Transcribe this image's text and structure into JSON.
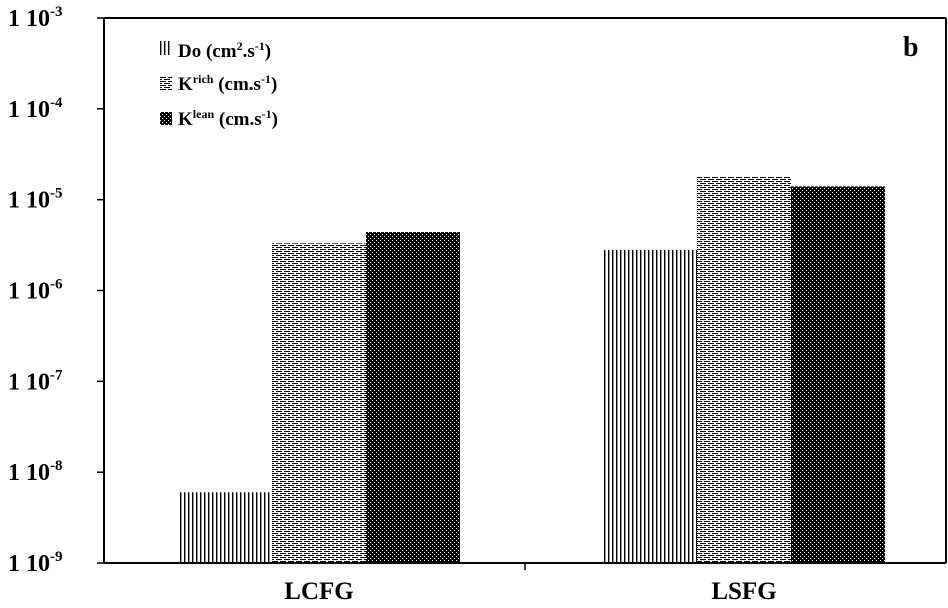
{
  "chart_data": {
    "type": "bar",
    "panel_label": "b",
    "categories": [
      "LCFG",
      "LSFG"
    ],
    "yscale": "log",
    "ylim": [
      1e-09,
      0.001
    ],
    "yticks": [
      {
        "value": 0.001,
        "mant": "1 10",
        "exp": "-3"
      },
      {
        "value": 0.0001,
        "mant": "1 10",
        "exp": "-4"
      },
      {
        "value": 1e-05,
        "mant": "1 10",
        "exp": "-5"
      },
      {
        "value": 1e-06,
        "mant": "1 10",
        "exp": "-6"
      },
      {
        "value": 1e-07,
        "mant": "1 10",
        "exp": "-7"
      },
      {
        "value": 1e-08,
        "mant": "1 10",
        "exp": "-8"
      },
      {
        "value": 1e-09,
        "mant": "1 10",
        "exp": "-9"
      }
    ],
    "series": [
      {
        "key": "do",
        "pattern": "vlines",
        "legend": {
          "main": "Do (cm",
          "sup1": "2",
          "mid": ".s",
          "sup2": "-1",
          "tail": ")"
        },
        "values": [
          6e-09,
          2.8e-06
        ]
      },
      {
        "key": "krich",
        "pattern": "hdash",
        "legend": {
          "main": "K",
          "sup1": "rich",
          "mid": " (cm.s",
          "sup2": "-1",
          "tail": ")"
        },
        "values": [
          3.3e-06,
          1.8e-05
        ]
      },
      {
        "key": "klean",
        "pattern": "dots",
        "legend": {
          "main": "K",
          "sup1": "lean",
          "mid": " (cm.s",
          "sup2": "-1",
          "tail": ")"
        },
        "values": [
          4.4e-06,
          1.4e-05
        ]
      }
    ],
    "grid": false,
    "legend_position": "top-left"
  }
}
